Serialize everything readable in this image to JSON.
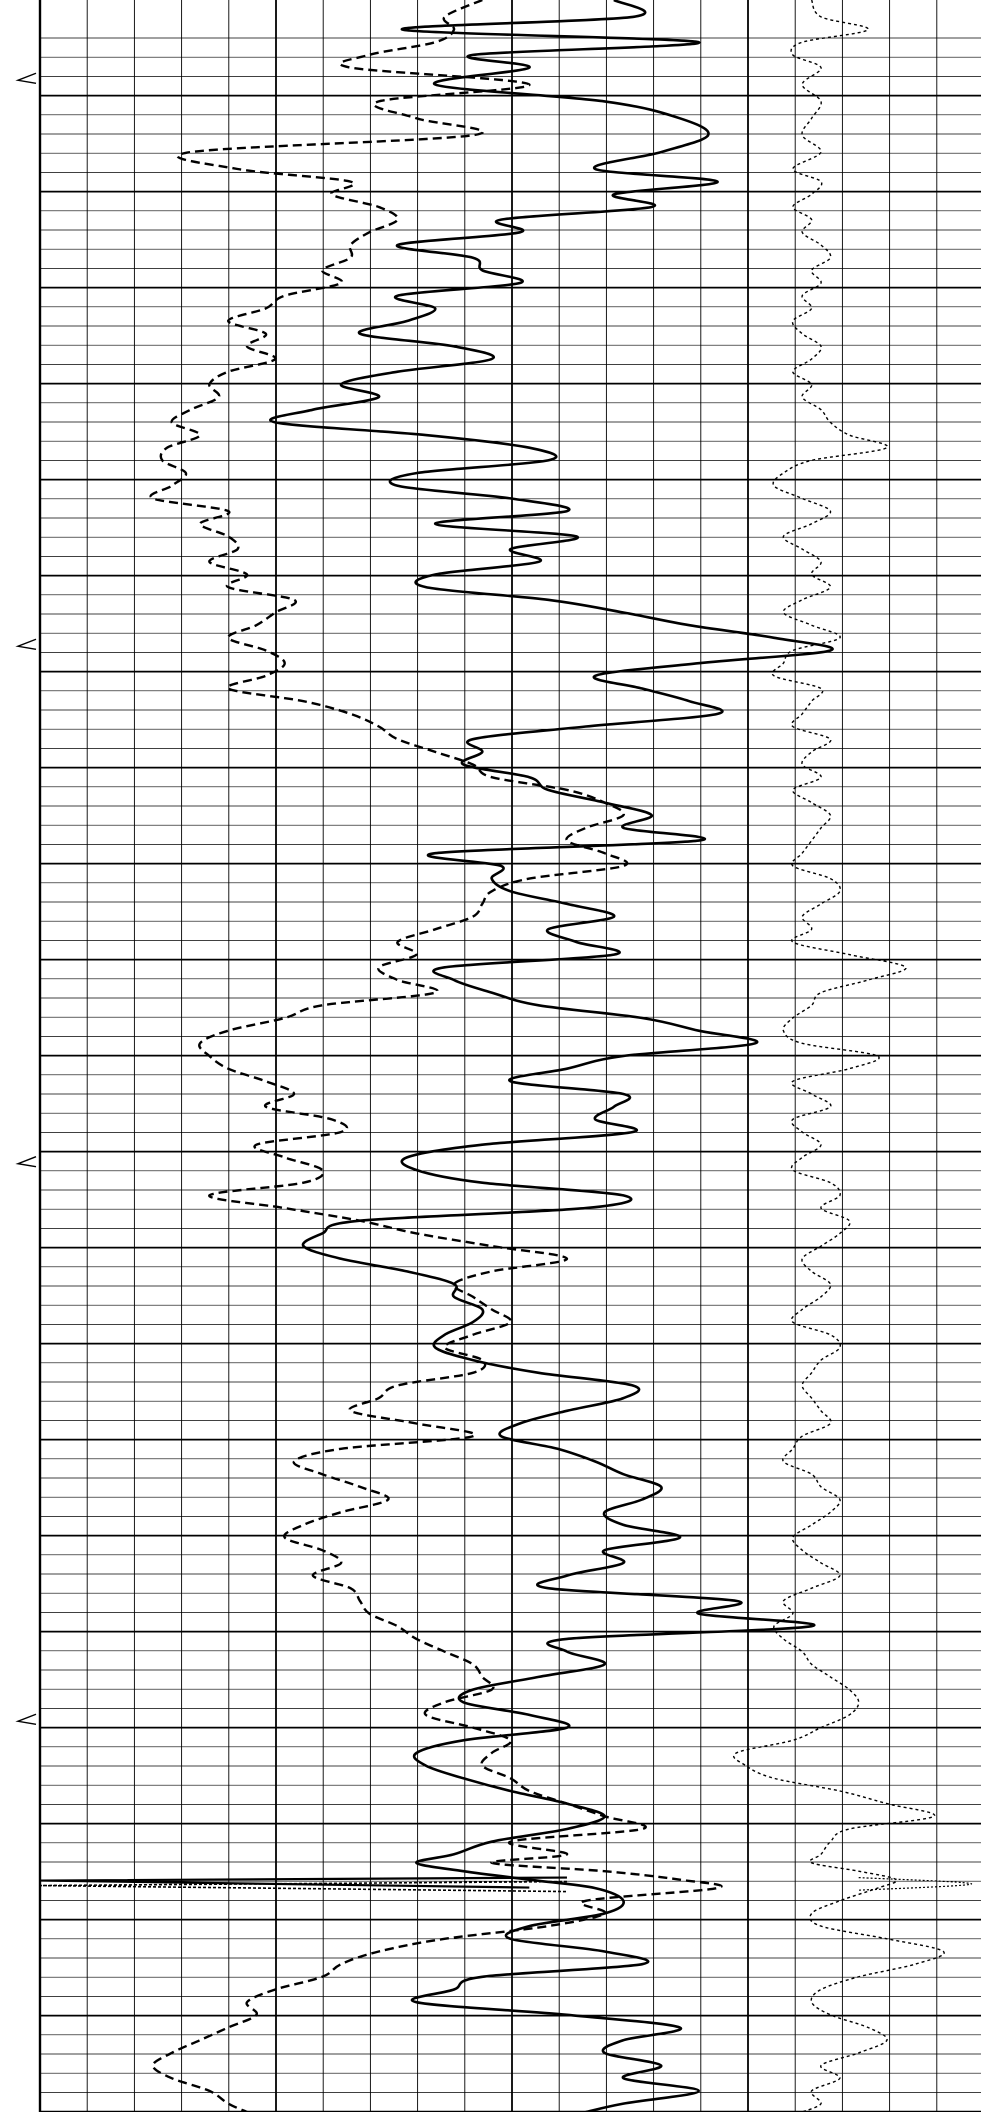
{
  "chart_data": {
    "type": "line",
    "orientation": "vertical-depth",
    "title": "",
    "xlabel": "",
    "ylabel": "",
    "depth_range": [
      0,
      1000
    ],
    "x_range": [
      0,
      1000
    ],
    "grid": true,
    "legend": "none",
    "colors": {
      "ink": "#000000",
      "paper": "#ffffff",
      "grid": "#000000"
    },
    "markers": [
      {
        "depth": 38,
        "symbol": "triangle-left"
      },
      {
        "depth": 306,
        "symbol": "triangle-left"
      },
      {
        "depth": 551,
        "symbol": "triangle-left"
      },
      {
        "depth": 815,
        "symbol": "triangle-left"
      }
    ],
    "series": [
      {
        "style": "solid",
        "depth": [
          0,
          8,
          14,
          20,
          26,
          32,
          40,
          48,
          56,
          64,
          72,
          80,
          86,
          92,
          98,
          104,
          110,
          116,
          122,
          128,
          134,
          140,
          146,
          152,
          158,
          164,
          170,
          176,
          182,
          188,
          194,
          200,
          206,
          212,
          218,
          224,
          230,
          236,
          242,
          248,
          254,
          260,
          266,
          272,
          278,
          284,
          290,
          296,
          302,
          308,
          314,
          320,
          326,
          332,
          338,
          344,
          350,
          356,
          362,
          368,
          374,
          380,
          386,
          392,
          398,
          404,
          410,
          416,
          422,
          428,
          434,
          440,
          446,
          452,
          458,
          464,
          470,
          476,
          482,
          488,
          494,
          500,
          506,
          512,
          518,
          524,
          530,
          536,
          542,
          548,
          554,
          560,
          566,
          572,
          578,
          584,
          590,
          596,
          602,
          608,
          614,
          620,
          626,
          632,
          638,
          644,
          650,
          656,
          662,
          668,
          674,
          680,
          686,
          692,
          698,
          704,
          710,
          716,
          722,
          728,
          734,
          740,
          746,
          752,
          758,
          764,
          770,
          776,
          782,
          788,
          794,
          800,
          806,
          812,
          818,
          824,
          830,
          836,
          842,
          848,
          854,
          860,
          866,
          872,
          878,
          882,
          886,
          890,
          894,
          900,
          906,
          912,
          918,
          924,
          930,
          936,
          942,
          948,
          954,
          960,
          966,
          972,
          978,
          984,
          990,
          996,
          1000
        ],
        "x": [
          610,
          630,
          385,
          700,
          460,
          520,
          420,
          600,
          680,
          710,
          660,
          590,
          720,
          610,
          650,
          490,
          510,
          380,
          460,
          470,
          510,
          380,
          420,
          390,
          340,
          440,
          480,
          380,
          320,
          360,
          290,
          250,
          410,
          520,
          540,
          400,
          380,
          500,
          560,
          420,
          570,
          500,
          530,
          420,
          410,
          540,
          620,
          690,
          780,
          840,
          700,
          590,
          640,
          690,
          720,
          580,
          460,
          470,
          450,
          520,
          540,
          600,
          650,
          620,
          700,
          420,
          490,
          480,
          500,
          560,
          610,
          540,
          570,
          610,
          430,
          440,
          480,
          530,
          640,
          700,
          760,
          620,
          560,
          500,
          620,
          610,
          590,
          630,
          470,
          390,
          400,
          470,
          620,
          580,
          340,
          300,
          280,
          320,
          390,
          440,
          440,
          470,
          460,
          430,
          420,
          460,
          530,
          630,
          620,
          560,
          510,
          490,
          550,
          590,
          620,
          660,
          640,
          600,
          620,
          680,
          600,
          620,
          560,
          540,
          740,
          700,
          820,
          560,
          560,
          600,
          530,
          460,
          450,
          520,
          560,
          450,
          400,
          410,
          450,
          500,
          560,
          600,
          560,
          480,
          440,
          400,
          450,
          520,
          590,
          620,
          600,
          520,
          500,
          600,
          640,
          470,
          440,
          400,
          560,
          680,
          620,
          600,
          660,
          620,
          700,
          620,
          580
        ]
      },
      {
        "style": "dashed",
        "depth": [
          0,
          8,
          14,
          20,
          26,
          32,
          40,
          48,
          56,
          64,
          72,
          80,
          86,
          92,
          98,
          104,
          110,
          116,
          122,
          128,
          134,
          140,
          146,
          152,
          158,
          164,
          170,
          176,
          182,
          188,
          194,
          200,
          206,
          212,
          218,
          224,
          230,
          236,
          242,
          248,
          254,
          260,
          266,
          272,
          278,
          284,
          290,
          296,
          302,
          308,
          314,
          320,
          326,
          332,
          338,
          344,
          350,
          356,
          362,
          368,
          374,
          380,
          386,
          392,
          398,
          404,
          410,
          416,
          422,
          428,
          434,
          440,
          446,
          452,
          458,
          464,
          470,
          476,
          482,
          488,
          494,
          500,
          506,
          512,
          518,
          524,
          530,
          536,
          542,
          548,
          554,
          560,
          566,
          572,
          578,
          584,
          590,
          596,
          602,
          608,
          614,
          620,
          626,
          632,
          638,
          644,
          650,
          656,
          662,
          668,
          674,
          680,
          686,
          692,
          698,
          704,
          710,
          716,
          722,
          728,
          734,
          740,
          746,
          752,
          758,
          764,
          770,
          776,
          782,
          788,
          794,
          800,
          806,
          812,
          818,
          824,
          830,
          836,
          842,
          848,
          854,
          860,
          866,
          872,
          878,
          882,
          886,
          890,
          894,
          900,
          906,
          912,
          918,
          924,
          930,
          936,
          942,
          948,
          954,
          960,
          966,
          972,
          978,
          984,
          990,
          996,
          1000
        ],
        "x": [
          470,
          430,
          440,
          420,
          350,
          330,
          520,
          360,
          400,
          460,
          160,
          210,
          330,
          310,
          360,
          380,
          350,
          330,
          330,
          300,
          320,
          260,
          240,
          200,
          240,
          220,
          250,
          200,
          180,
          190,
          160,
          140,
          170,
          135,
          130,
          155,
          140,
          120,
          200,
          170,
          200,
          210,
          180,
          220,
          200,
          270,
          250,
          230,
          200,
          240,
          260,
          240,
          200,
          280,
          330,
          360,
          380,
          420,
          460,
          480,
          560,
          600,
          620,
          580,
          560,
          600,
          620,
          520,
          480,
          470,
          460,
          420,
          380,
          400,
          360,
          380,
          420,
          300,
          260,
          200,
          170,
          180,
          200,
          240,
          270,
          240,
          310,
          320,
          230,
          260,
          300,
          280,
          180,
          260,
          340,
          400,
          480,
          560,
          480,
          440,
          460,
          480,
          500,
          460,
          430,
          470,
          460,
          380,
          360,
          330,
          400,
          460,
          320,
          270,
          300,
          340,
          370,
          320,
          280,
          260,
          300,
          320,
          290,
          330,
          340,
          350,
          380,
          400,
          430,
          460,
          470,
          480,
          430,
          410,
          460,
          500,
          480,
          470,
          500,
          520,
          560,
          600,
          640,
          500,
          560,
          480,
          600,
          680,
          720,
          580,
          600,
          540,
          430,
          360,
          320,
          300,
          250,
          220,
          230,
          200,
          170,
          140,
          120,
          140,
          180,
          200,
          220
        ]
      },
      {
        "style": "dotted",
        "depth": [
          0,
          8,
          14,
          20,
          26,
          32,
          40,
          48,
          56,
          64,
          72,
          80,
          86,
          92,
          98,
          104,
          110,
          116,
          122,
          128,
          134,
          140,
          146,
          152,
          158,
          164,
          170,
          176,
          182,
          188,
          194,
          200,
          206,
          212,
          218,
          224,
          230,
          236,
          242,
          248,
          254,
          260,
          266,
          272,
          278,
          284,
          290,
          296,
          302,
          308,
          314,
          320,
          326,
          332,
          338,
          344,
          350,
          356,
          362,
          368,
          374,
          380,
          386,
          392,
          398,
          404,
          410,
          416,
          422,
          428,
          434,
          440,
          446,
          452,
          458,
          464,
          470,
          476,
          482,
          488,
          494,
          500,
          506,
          512,
          518,
          524,
          530,
          536,
          542,
          548,
          554,
          560,
          566,
          572,
          578,
          584,
          590,
          596,
          602,
          608,
          614,
          620,
          626,
          632,
          638,
          644,
          650,
          656,
          662,
          668,
          674,
          680,
          686,
          692,
          698,
          704,
          710,
          716,
          722,
          728,
          734,
          740,
          746,
          752,
          758,
          764,
          770,
          776,
          782,
          788,
          794,
          800,
          806,
          812,
          818,
          824,
          830,
          836,
          842,
          848,
          854,
          860,
          866,
          872,
          878,
          882,
          886,
          890,
          894,
          900,
          906,
          912,
          918,
          924,
          930,
          936,
          942,
          948,
          954,
          960,
          966,
          972,
          978,
          984,
          990,
          996,
          1000
        ],
        "x": [
          820,
          830,
          880,
          810,
          800,
          830,
          810,
          830,
          820,
          810,
          830,
          800,
          830,
          820,
          800,
          820,
          810,
          830,
          840,
          820,
          830,
          810,
          820,
          800,
          810,
          830,
          820,
          800,
          820,
          810,
          830,
          840,
          860,
          900,
          820,
          790,
          780,
          810,
          840,
          820,
          790,
          810,
          830,
          820,
          840,
          810,
          790,
          820,
          850,
          800,
          790,
          780,
          830,
          820,
          810,
          800,
          840,
          820,
          810,
          830,
          800,
          820,
          840,
          830,
          820,
          810,
          800,
          840,
          850,
          830,
          810,
          820,
          800,
          860,
          920,
          880,
          830,
          820,
          800,
          790,
          810,
          890,
          860,
          800,
          820,
          840,
          800,
          810,
          830,
          810,
          800,
          840,
          850,
          830,
          860,
          850,
          830,
          810,
          820,
          840,
          830,
          810,
          800,
          840,
          850,
          830,
          820,
          810,
          820,
          830,
          840,
          810,
          800,
          790,
          820,
          830,
          850,
          840,
          820,
          800,
          810,
          830,
          850,
          820,
          790,
          800,
          780,
          790,
          810,
          820,
          840,
          860,
          870,
          860,
          830,
          800,
          740,
          750,
          780,
          850,
          900,
          950,
          860,
          840,
          830,
          820,
          870,
          910,
          890,
          850,
          820,
          830,
          900,
          960,
          930,
          870,
          830,
          820,
          840,
          880,
          900,
          870,
          830,
          850,
          820,
          830,
          810
        ]
      },
      {
        "style": "dotted-fill",
        "depth": [
          889,
          892,
          895
        ],
        "x": [
          870,
          990,
          870
        ]
      }
    ]
  }
}
